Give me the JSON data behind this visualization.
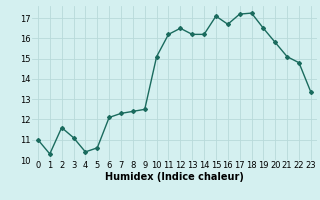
{
  "x": [
    0,
    1,
    2,
    3,
    4,
    5,
    6,
    7,
    8,
    9,
    10,
    11,
    12,
    13,
    14,
    15,
    16,
    17,
    18,
    19,
    20,
    21,
    22,
    23
  ],
  "y": [
    11.0,
    10.3,
    11.6,
    11.1,
    10.4,
    10.6,
    12.1,
    12.3,
    12.4,
    12.5,
    15.1,
    16.2,
    16.5,
    16.2,
    16.2,
    17.1,
    16.7,
    17.2,
    17.25,
    16.5,
    15.8,
    15.1,
    14.8,
    13.35
  ],
  "xlim": [
    -0.5,
    23.5
  ],
  "ylim": [
    10,
    17.6
  ],
  "yticks": [
    10,
    11,
    12,
    13,
    14,
    15,
    16,
    17
  ],
  "xticks": [
    0,
    1,
    2,
    3,
    4,
    5,
    6,
    7,
    8,
    9,
    10,
    11,
    12,
    13,
    14,
    15,
    16,
    17,
    18,
    19,
    20,
    21,
    22,
    23
  ],
  "xlabel": "Humidex (Indice chaleur)",
  "line_color": "#1a6b5e",
  "marker": "D",
  "marker_size": 2.0,
  "bg_color": "#d4f0f0",
  "grid_color": "#b8dada",
  "tick_fontsize": 6.0,
  "xlabel_fontsize": 7.0,
  "line_width": 1.0
}
